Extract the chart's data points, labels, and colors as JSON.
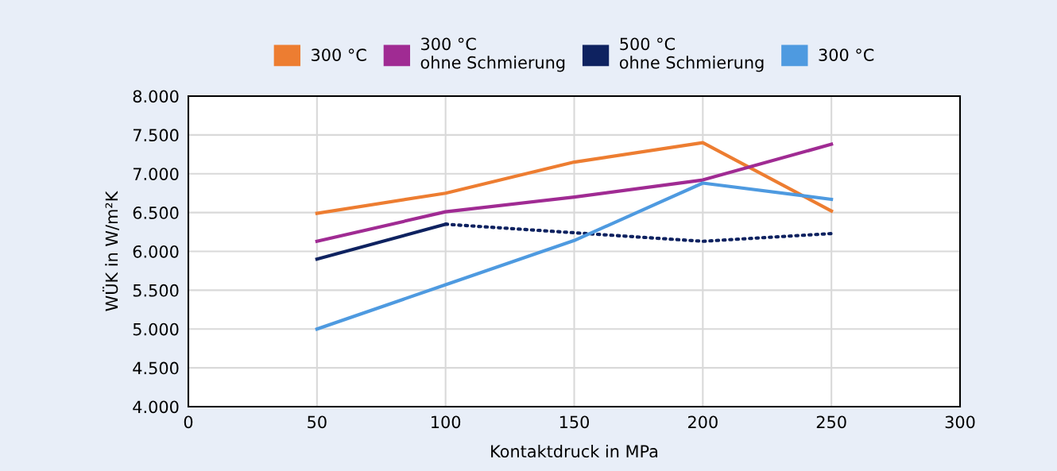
{
  "chart_data": {
    "type": "line",
    "xlabel": "Kontaktdruck in MPa",
    "ylabel": "WÜK in W/m²K",
    "series": [
      {
        "name": "300 °C",
        "color": "#ed7d31",
        "x": [
          50,
          100,
          150,
          200,
          250
        ],
        "values": [
          6490,
          6750,
          7150,
          7400,
          6520
        ]
      },
      {
        "name": "300 °C\nohne Schmierung",
        "color": "#a02b93",
        "x": [
          50,
          100,
          150,
          200,
          250
        ],
        "values": [
          6130,
          6510,
          6700,
          6920,
          7380
        ]
      },
      {
        "name": "500 °C\nohne Schmierung",
        "color": "#0e2260",
        "x": [
          50,
          100
        ],
        "values": [
          5900,
          6350
        ]
      },
      {
        "color": "#0e2260",
        "line_style": "dotted",
        "x": [
          100,
          150,
          200,
          250
        ],
        "values": [
          6350,
          6240,
          6130,
          6230
        ]
      },
      {
        "name": "300 °C",
        "color": "#4e9ae0",
        "x": [
          50,
          100,
          150,
          200,
          250
        ],
        "values": [
          5000,
          5570,
          6140,
          6880,
          6670
        ]
      }
    ],
    "xlim": [
      0,
      300
    ],
    "xticks": [
      0,
      50,
      100,
      150,
      200,
      250,
      300
    ],
    "ylim": [
      4000,
      8000
    ],
    "yticks": [
      {
        "value": 4000,
        "label": "4.000"
      },
      {
        "value": 4500,
        "label": "4.500"
      },
      {
        "value": 5000,
        "label": "5.000"
      },
      {
        "value": 5500,
        "label": "5.500"
      },
      {
        "value": 6000,
        "label": "6.000"
      },
      {
        "value": 6500,
        "label": "6.500"
      },
      {
        "value": 7000,
        "label": "7.000"
      },
      {
        "value": 7500,
        "label": "7.500"
      },
      {
        "value": 8000,
        "label": "8.000"
      }
    ],
    "grid": true,
    "legend": "top",
    "marker": "none",
    "line_style": "solid"
  }
}
